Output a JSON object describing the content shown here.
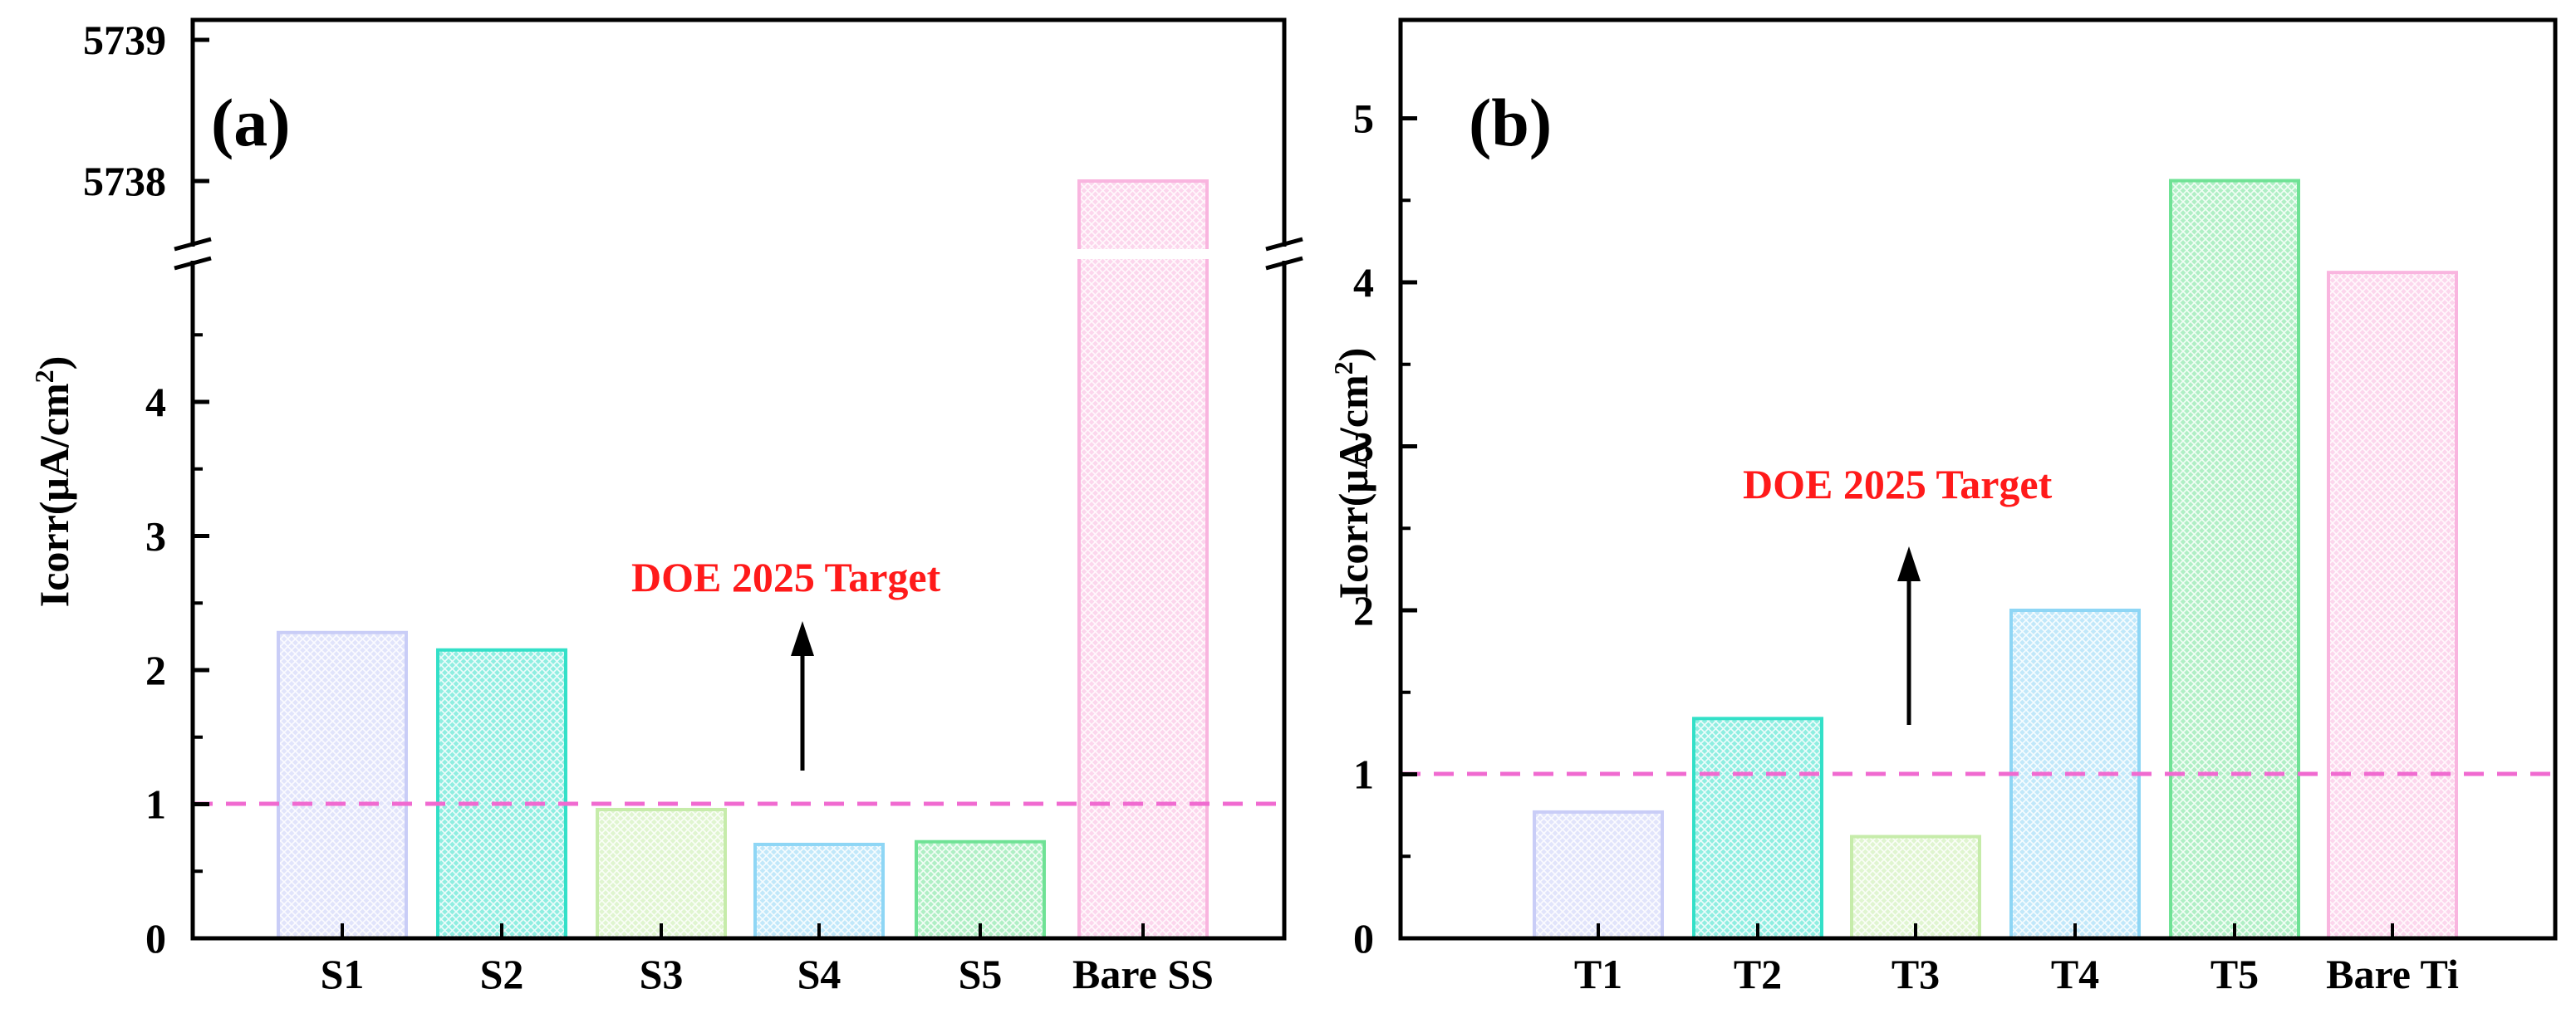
{
  "chart_data": [
    {
      "panel_label": "(a)",
      "type": "bar",
      "ylabel": "Icorr(μA/cm",
      "ylabel_sup": "2",
      "ylabel_close": ")",
      "categories": [
        "S1",
        "S2",
        "S3",
        "S4",
        "S5",
        "Bare SS"
      ],
      "values": [
        2.28,
        2.15,
        0.96,
        0.7,
        0.72,
        5738
      ],
      "colors": [
        "#c9cdf7",
        "#33e0c8",
        "#c6ecaa",
        "#8ed6f5",
        "#6fe295",
        "#f9b5df"
      ],
      "ylim": [
        0,
        5739
      ],
      "axis_break": {
        "from": 4.9,
        "to": 5737.45
      },
      "lower_ticks": [
        0,
        1,
        2,
        3,
        4
      ],
      "upper_ticks": [
        5738,
        5739
      ],
      "target": {
        "value": 1,
        "label": "DOE 2025 Target",
        "color": "#f06ad0",
        "label_color": "#ff1a1a"
      }
    },
    {
      "panel_label": "(b)",
      "type": "bar",
      "ylabel": "Icorr(μA/cm",
      "ylabel_sup": "2",
      "ylabel_close": ")",
      "categories": [
        "T1",
        "T2",
        "T3",
        "T4",
        "T5",
        "Bare Ti"
      ],
      "values": [
        0.77,
        1.34,
        0.62,
        2.0,
        4.62,
        4.06
      ],
      "colors": [
        "#c9cdf7",
        "#33e0c8",
        "#c6ecaa",
        "#8ed6f5",
        "#6fe295",
        "#f9b5df"
      ],
      "ylim": [
        0,
        5.5
      ],
      "ticks": [
        0,
        1,
        2,
        3,
        4,
        5
      ],
      "target": {
        "value": 1,
        "label": "DOE 2025 Target",
        "color": "#f06ad0",
        "label_color": "#ff1a1a"
      }
    }
  ]
}
